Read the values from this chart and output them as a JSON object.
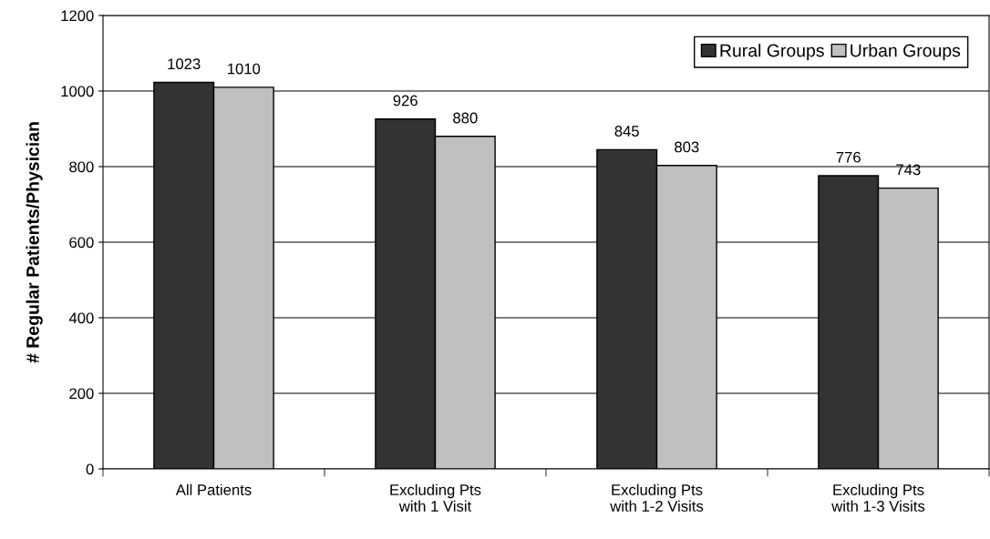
{
  "chart_data": {
    "type": "bar",
    "ylabel": "# Regular Patients/Physician",
    "categories": [
      "All Patients",
      "Excluding Pts\nwith 1 Visit",
      "Excluding Pts\nwith 1-2 Visits",
      "Excluding Pts\nwith 1-3 Visits"
    ],
    "series": [
      {
        "name": "Rural Groups",
        "color": "#333333",
        "values": [
          1023,
          926,
          845,
          776
        ]
      },
      {
        "name": "Urban Groups",
        "color": "#c0c0c0",
        "values": [
          1010,
          880,
          803,
          743
        ]
      }
    ],
    "ylim": [
      0,
      1200
    ],
    "yticks": [
      0,
      200,
      400,
      600,
      800,
      1000,
      1200
    ],
    "grid": "y",
    "legend": "top right",
    "data_labels": true
  }
}
